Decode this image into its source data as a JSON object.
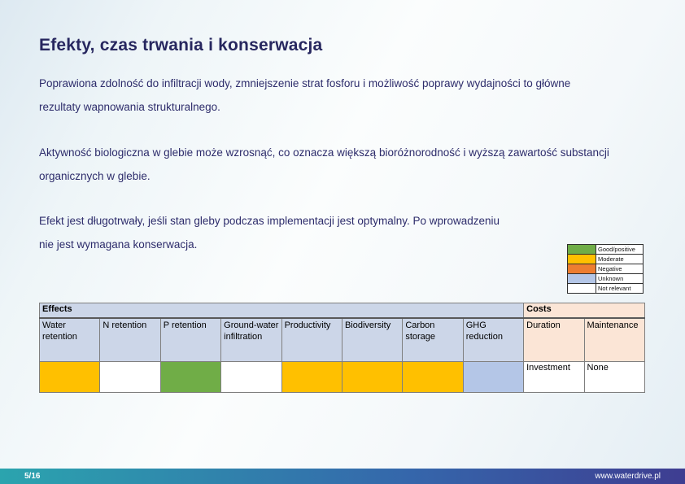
{
  "page": {
    "title": "Efekty, czas trwania i konserwacja",
    "paragraphs": [
      "Poprawiona zdolność do infiltracji wody, zmniejszenie strat fosforu i możliwość poprawy wydajności to główne\nrezultaty wapnowania strukturalnego.",
      "Aktywność biologiczna w glebie może wzrosnąć, co oznacza większą bioróżnorodność i wyższą zawartość substancji\norganicznych w glebie.",
      "Efekt jest długotrwały, jeśli stan gleby podczas implementacji jest optymalny. Po wprowadzeniu\nnie jest wymagana konserwacja."
    ]
  },
  "legend": {
    "items": [
      {
        "label": "Good/positive",
        "color": "#70ad47"
      },
      {
        "label": "Moderate",
        "color": "#ffc000"
      },
      {
        "label": "Negative",
        "color": "#ed7d31"
      },
      {
        "label": "Unknown",
        "color": "#b4c6e7"
      },
      {
        "label": "Not relevant",
        "color": "#ffffff"
      }
    ]
  },
  "table": {
    "effects_header": "Effects",
    "costs_header": "Costs",
    "effects_columns": [
      "Water retention",
      "N retention",
      "P retention",
      "Ground-water infiltration",
      "Productivity",
      "Biodiversity",
      "Carbon storage",
      "GHG reduction"
    ],
    "costs_columns": [
      "Duration",
      "Maintenance"
    ],
    "effects_values": [
      {
        "column": "Water retention",
        "rating": "Moderate",
        "color": "#ffc000"
      },
      {
        "column": "N retention",
        "rating": "Not relevant",
        "color": "#ffffff"
      },
      {
        "column": "P retention",
        "rating": "Good/positive",
        "color": "#70ad47"
      },
      {
        "column": "Ground-water infiltration",
        "rating": "Not relevant",
        "color": "#ffffff"
      },
      {
        "column": "Productivity",
        "rating": "Moderate",
        "color": "#ffc000"
      },
      {
        "column": "Biodiversity",
        "rating": "Moderate",
        "color": "#ffc000"
      },
      {
        "column": "Carbon storage",
        "rating": "Moderate",
        "color": "#ffc000"
      },
      {
        "column": "GHG reduction",
        "rating": "Unknown",
        "color": "#b4c6e7"
      }
    ],
    "costs_values": [
      "Investment",
      "None"
    ]
  },
  "footer": {
    "page_number": "5/16",
    "website": "www.waterdrive.pl"
  }
}
